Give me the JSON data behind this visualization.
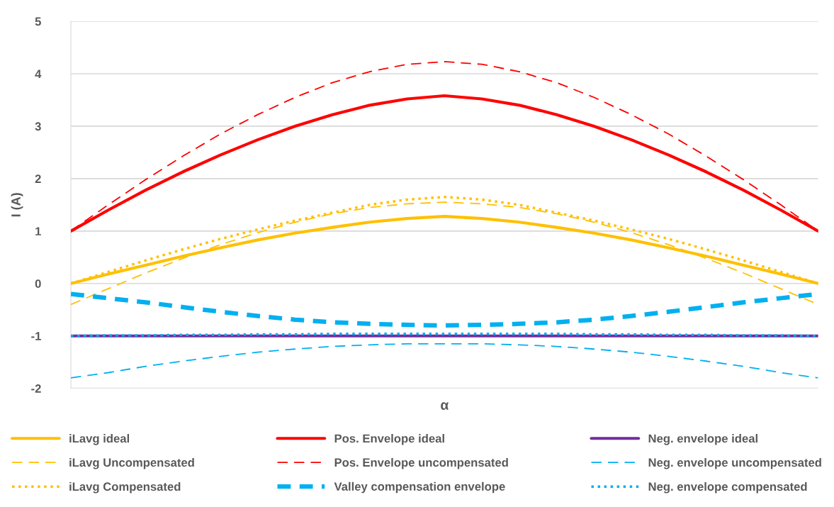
{
  "chart_data": {
    "type": "line",
    "xlabel": "α",
    "ylabel": "I (A)",
    "categories": [
      null,
      null,
      null,
      null,
      null,
      null,
      null,
      null,
      null,
      null,
      null,
      null,
      null,
      null,
      null,
      null,
      null,
      null,
      null,
      null,
      null
    ],
    "series": [
      {
        "name": "iLavg ideal",
        "color": "#ffc000",
        "line_style": "solid",
        "values": [
          0,
          0.18,
          0.35,
          0.52,
          0.68,
          0.83,
          0.96,
          1.07,
          1.17,
          1.24,
          1.28,
          1.24,
          1.17,
          1.07,
          0.96,
          0.83,
          0.68,
          0.52,
          0.35,
          0.18,
          0
        ]
      },
      {
        "name": "Pos. Envelope ideal",
        "color": "#ff0000",
        "line_style": "solid",
        "values": [
          1.0,
          1.4,
          1.78,
          2.13,
          2.45,
          2.74,
          3.0,
          3.22,
          3.4,
          3.52,
          3.58,
          3.52,
          3.4,
          3.22,
          3.0,
          2.74,
          2.45,
          2.13,
          1.78,
          1.4,
          1.0
        ]
      },
      {
        "name": "Neg. envelope ideal",
        "color": "#7030a0",
        "line_style": "solid",
        "values": [
          -1,
          -1,
          -1,
          -1,
          -1,
          -1,
          -1,
          -1,
          -1,
          -1,
          -1,
          -1,
          -1,
          -1,
          -1,
          -1,
          -1,
          -1,
          -1,
          -1,
          -1
        ]
      },
      {
        "name": "iLavg Uncompensated",
        "color": "#ffc000",
        "line_style": "dashed",
        "values": [
          -0.4,
          -0.1,
          0.2,
          0.48,
          0.74,
          0.97,
          1.17,
          1.33,
          1.45,
          1.52,
          1.55,
          1.52,
          1.45,
          1.33,
          1.17,
          0.97,
          0.74,
          0.48,
          0.2,
          -0.1,
          -0.4
        ]
      },
      {
        "name": "Pos. Envelope uncompensated",
        "color": "#ff0000",
        "line_style": "dashed",
        "values": [
          1.0,
          1.5,
          1.98,
          2.43,
          2.85,
          3.22,
          3.55,
          3.83,
          4.04,
          4.18,
          4.23,
          4.18,
          4.04,
          3.83,
          3.55,
          3.22,
          2.85,
          2.43,
          1.98,
          1.5,
          1.0
        ]
      },
      {
        "name": "Neg. envelope uncompensated",
        "color": "#00b0f0",
        "line_style": "dashed",
        "values": [
          -1.8,
          -1.7,
          -1.58,
          -1.48,
          -1.39,
          -1.31,
          -1.25,
          -1.2,
          -1.17,
          -1.15,
          -1.15,
          -1.15,
          -1.17,
          -1.2,
          -1.25,
          -1.31,
          -1.39,
          -1.48,
          -1.58,
          -1.7,
          -1.8
        ]
      },
      {
        "name": "iLavg Compensated",
        "color": "#ffc000",
        "line_style": "dotted",
        "values": [
          0,
          0.22,
          0.44,
          0.65,
          0.85,
          1.03,
          1.2,
          1.35,
          1.5,
          1.6,
          1.65,
          1.6,
          1.5,
          1.35,
          1.2,
          1.03,
          0.85,
          0.65,
          0.44,
          0.22,
          0
        ]
      },
      {
        "name": "Valley compensation envelope",
        "color": "#00b0f0",
        "line_style": "dashed",
        "values": [
          -0.2,
          -0.28,
          -0.36,
          -0.45,
          -0.54,
          -0.62,
          -0.69,
          -0.74,
          -0.77,
          -0.79,
          -0.8,
          -0.79,
          -0.77,
          -0.74,
          -0.69,
          -0.62,
          -0.54,
          -0.45,
          -0.36,
          -0.28,
          -0.2
        ]
      },
      {
        "name": "Neg. envelope compensated",
        "color": "#00b0f0",
        "line_style": "dotted",
        "values": [
          -1.0,
          -0.99,
          -0.99,
          -0.98,
          -0.98,
          -0.97,
          -0.97,
          -0.96,
          -0.96,
          -0.96,
          -0.96,
          -0.96,
          -0.96,
          -0.96,
          -0.97,
          -0.97,
          -0.98,
          -0.98,
          -0.99,
          -0.99,
          -1.0
        ]
      }
    ],
    "ylim": [
      -2,
      5
    ],
    "yticks": [
      {
        "value": -2,
        "label": "-2"
      },
      {
        "value": -1,
        "label": "-1"
      },
      0,
      1,
      2,
      3,
      4,
      5
    ],
    "grid": "y",
    "legend": "bottom"
  }
}
